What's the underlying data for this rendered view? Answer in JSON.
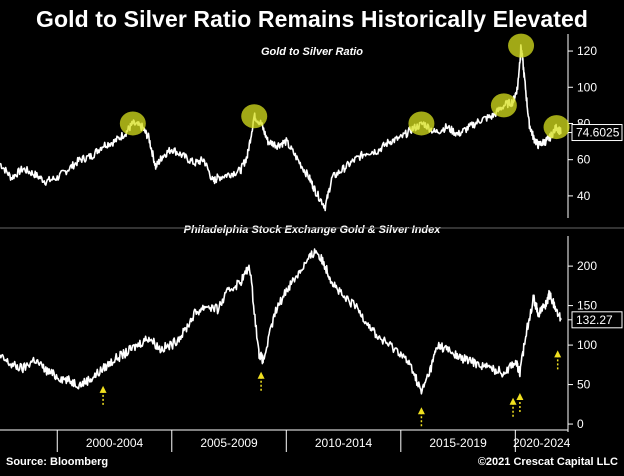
{
  "title": "Gold to Silver Ratio Remains Historically Elevated",
  "footer": {
    "source": "Source: Bloomberg",
    "credit": "©2021 Crescat Capital LLC"
  },
  "colors": {
    "background": "#000000",
    "line": "#ffffff",
    "highlight": "#d7e01d",
    "arrow": "#f0e020",
    "label_box": "#ffffff"
  },
  "chart_data": [
    {
      "type": "line",
      "title": "Gold to Silver Ratio",
      "ylim": [
        30,
        125
      ],
      "yticks": [
        40,
        60,
        80,
        100,
        120
      ],
      "last_value_label": "74.6025",
      "xlim": [
        1997.5,
        2022.3
      ],
      "series": [
        {
          "x": [
            1997.5,
            1998.0,
            1998.5,
            1999.0,
            1999.5,
            2000.0,
            2000.5,
            2001.0,
            2001.5,
            2002.0,
            2002.5,
            2003.0,
            2003.3,
            2003.7,
            2004.0,
            2004.3,
            2004.6,
            2005.0,
            2005.5,
            2006.0,
            2006.4,
            2006.8,
            2007.0,
            2007.5,
            2008.0,
            2008.3,
            2008.6,
            2008.9,
            2009.2,
            2009.6,
            2010.0,
            2010.5,
            2011.0,
            2011.3,
            2011.7,
            2012.0,
            2012.5,
            2013.0,
            2013.5,
            2014.0,
            2014.5,
            2015.0,
            2015.5,
            2016.0,
            2016.5,
            2017.0,
            2017.5,
            2018.0,
            2018.5,
            2019.0,
            2019.5,
            2019.9,
            2020.1,
            2020.25,
            2020.4,
            2020.6,
            2020.8,
            2021.0,
            2021.3,
            2021.5,
            2021.8,
            2022.0
          ],
          "values": [
            58,
            50,
            55,
            52,
            48,
            50,
            55,
            60,
            62,
            68,
            70,
            75,
            80,
            78,
            72,
            56,
            62,
            66,
            62,
            58,
            60,
            48,
            50,
            52,
            54,
            62,
            84,
            80,
            70,
            68,
            70,
            60,
            50,
            42,
            34,
            50,
            55,
            60,
            64,
            65,
            70,
            72,
            77,
            80,
            75,
            78,
            74,
            78,
            82,
            84,
            90,
            92,
            100,
            123,
            105,
            80,
            72,
            68,
            70,
            72,
            78,
            75
          ]
        }
      ]
    },
    {
      "type": "line",
      "title": "Philadelphia Stock Exchange Gold & Silver Index",
      "ylim": [
        -5,
        228
      ],
      "yticks": [
        0,
        50,
        100,
        150,
        200
      ],
      "last_value_label": "132.27",
      "xlim": [
        1997.5,
        2022.3
      ],
      "xlabels": [
        "2000-2004",
        "2005-2009",
        "2010-2014",
        "2015-2019",
        "2020-2024"
      ],
      "series": [
        {
          "x": [
            1997.5,
            1998.0,
            1998.5,
            1999.0,
            1999.5,
            2000.0,
            2000.5,
            2001.0,
            2001.5,
            2002.0,
            2002.5,
            2003.0,
            2003.5,
            2004.0,
            2004.5,
            2005.0,
            2005.5,
            2006.0,
            2006.5,
            2007.0,
            2007.5,
            2008.0,
            2008.4,
            2008.8,
            2009.0,
            2009.5,
            2010.0,
            2010.5,
            2011.0,
            2011.3,
            2011.7,
            2012.0,
            2012.5,
            2013.0,
            2013.5,
            2014.0,
            2014.5,
            2015.0,
            2015.5,
            2015.9,
            2016.3,
            2016.6,
            2017.0,
            2017.5,
            2018.0,
            2018.5,
            2019.0,
            2019.5,
            2020.0,
            2020.2,
            2020.5,
            2020.8,
            2021.0,
            2021.3,
            2021.5,
            2021.7,
            2022.0
          ],
          "values": [
            85,
            75,
            70,
            82,
            68,
            60,
            55,
            50,
            58,
            70,
            82,
            90,
            100,
            110,
            95,
            100,
            115,
            140,
            150,
            145,
            170,
            180,
            200,
            90,
            80,
            140,
            170,
            190,
            210,
            220,
            200,
            180,
            160,
            150,
            130,
            110,
            100,
            90,
            70,
            40,
            70,
            100,
            95,
            85,
            80,
            75,
            70,
            65,
            80,
            65,
            120,
            160,
            140,
            150,
            165,
            150,
            132
          ]
        }
      ]
    }
  ]
}
